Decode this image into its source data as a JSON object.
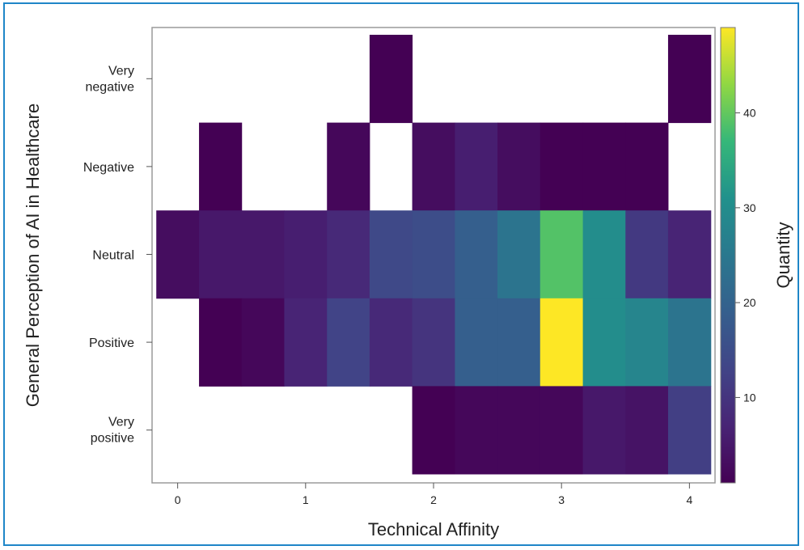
{
  "chart_data": {
    "type": "heatmap",
    "title": "",
    "xlabel": "Technical Affinity",
    "ylabel": "General Perception of AI in Healthcare",
    "colorbar_label": "Quantity",
    "colormap": "viridis",
    "color_range": [
      1,
      49
    ],
    "x_tick_labels": [
      "0",
      "1",
      "2",
      "3",
      "4"
    ],
    "x_range": [
      -0.2,
      4.2
    ],
    "y_categories": [
      "Very negative",
      "Negative",
      "Neutral",
      "Positive",
      "Very positive"
    ],
    "colorbar_ticks": [
      "10",
      "20",
      "30",
      "40"
    ],
    "colorbar_tick_values": [
      10,
      20,
      30,
      40
    ],
    "x_bins": [
      {
        "from": -0.167,
        "to": 0.167
      },
      {
        "from": 0.167,
        "to": 0.5
      },
      {
        "from": 0.5,
        "to": 0.833
      },
      {
        "from": 0.833,
        "to": 1.167
      },
      {
        "from": 1.167,
        "to": 1.5
      },
      {
        "from": 1.5,
        "to": 1.833
      },
      {
        "from": 1.833,
        "to": 2.167
      },
      {
        "from": 2.167,
        "to": 2.5
      },
      {
        "from": 2.5,
        "to": 2.833
      },
      {
        "from": 2.833,
        "to": 3.167
      },
      {
        "from": 3.167,
        "to": 3.5
      },
      {
        "from": 3.5,
        "to": 3.833
      },
      {
        "from": 3.833,
        "to": 4.167
      }
    ],
    "values": [
      [
        null,
        null,
        null,
        null,
        null,
        1,
        null,
        null,
        null,
        null,
        null,
        null,
        1
      ],
      [
        null,
        1,
        null,
        null,
        2,
        null,
        3,
        6,
        3,
        1,
        1,
        1,
        null
      ],
      [
        3,
        5,
        5,
        6,
        8,
        14,
        15,
        19,
        24,
        39,
        30,
        11,
        7
      ],
      [
        null,
        1,
        2,
        7,
        13,
        8,
        10,
        19,
        19,
        49,
        30,
        28,
        24
      ],
      [
        null,
        null,
        null,
        null,
        null,
        null,
        1,
        2,
        2,
        2,
        5,
        4,
        12
      ]
    ]
  }
}
